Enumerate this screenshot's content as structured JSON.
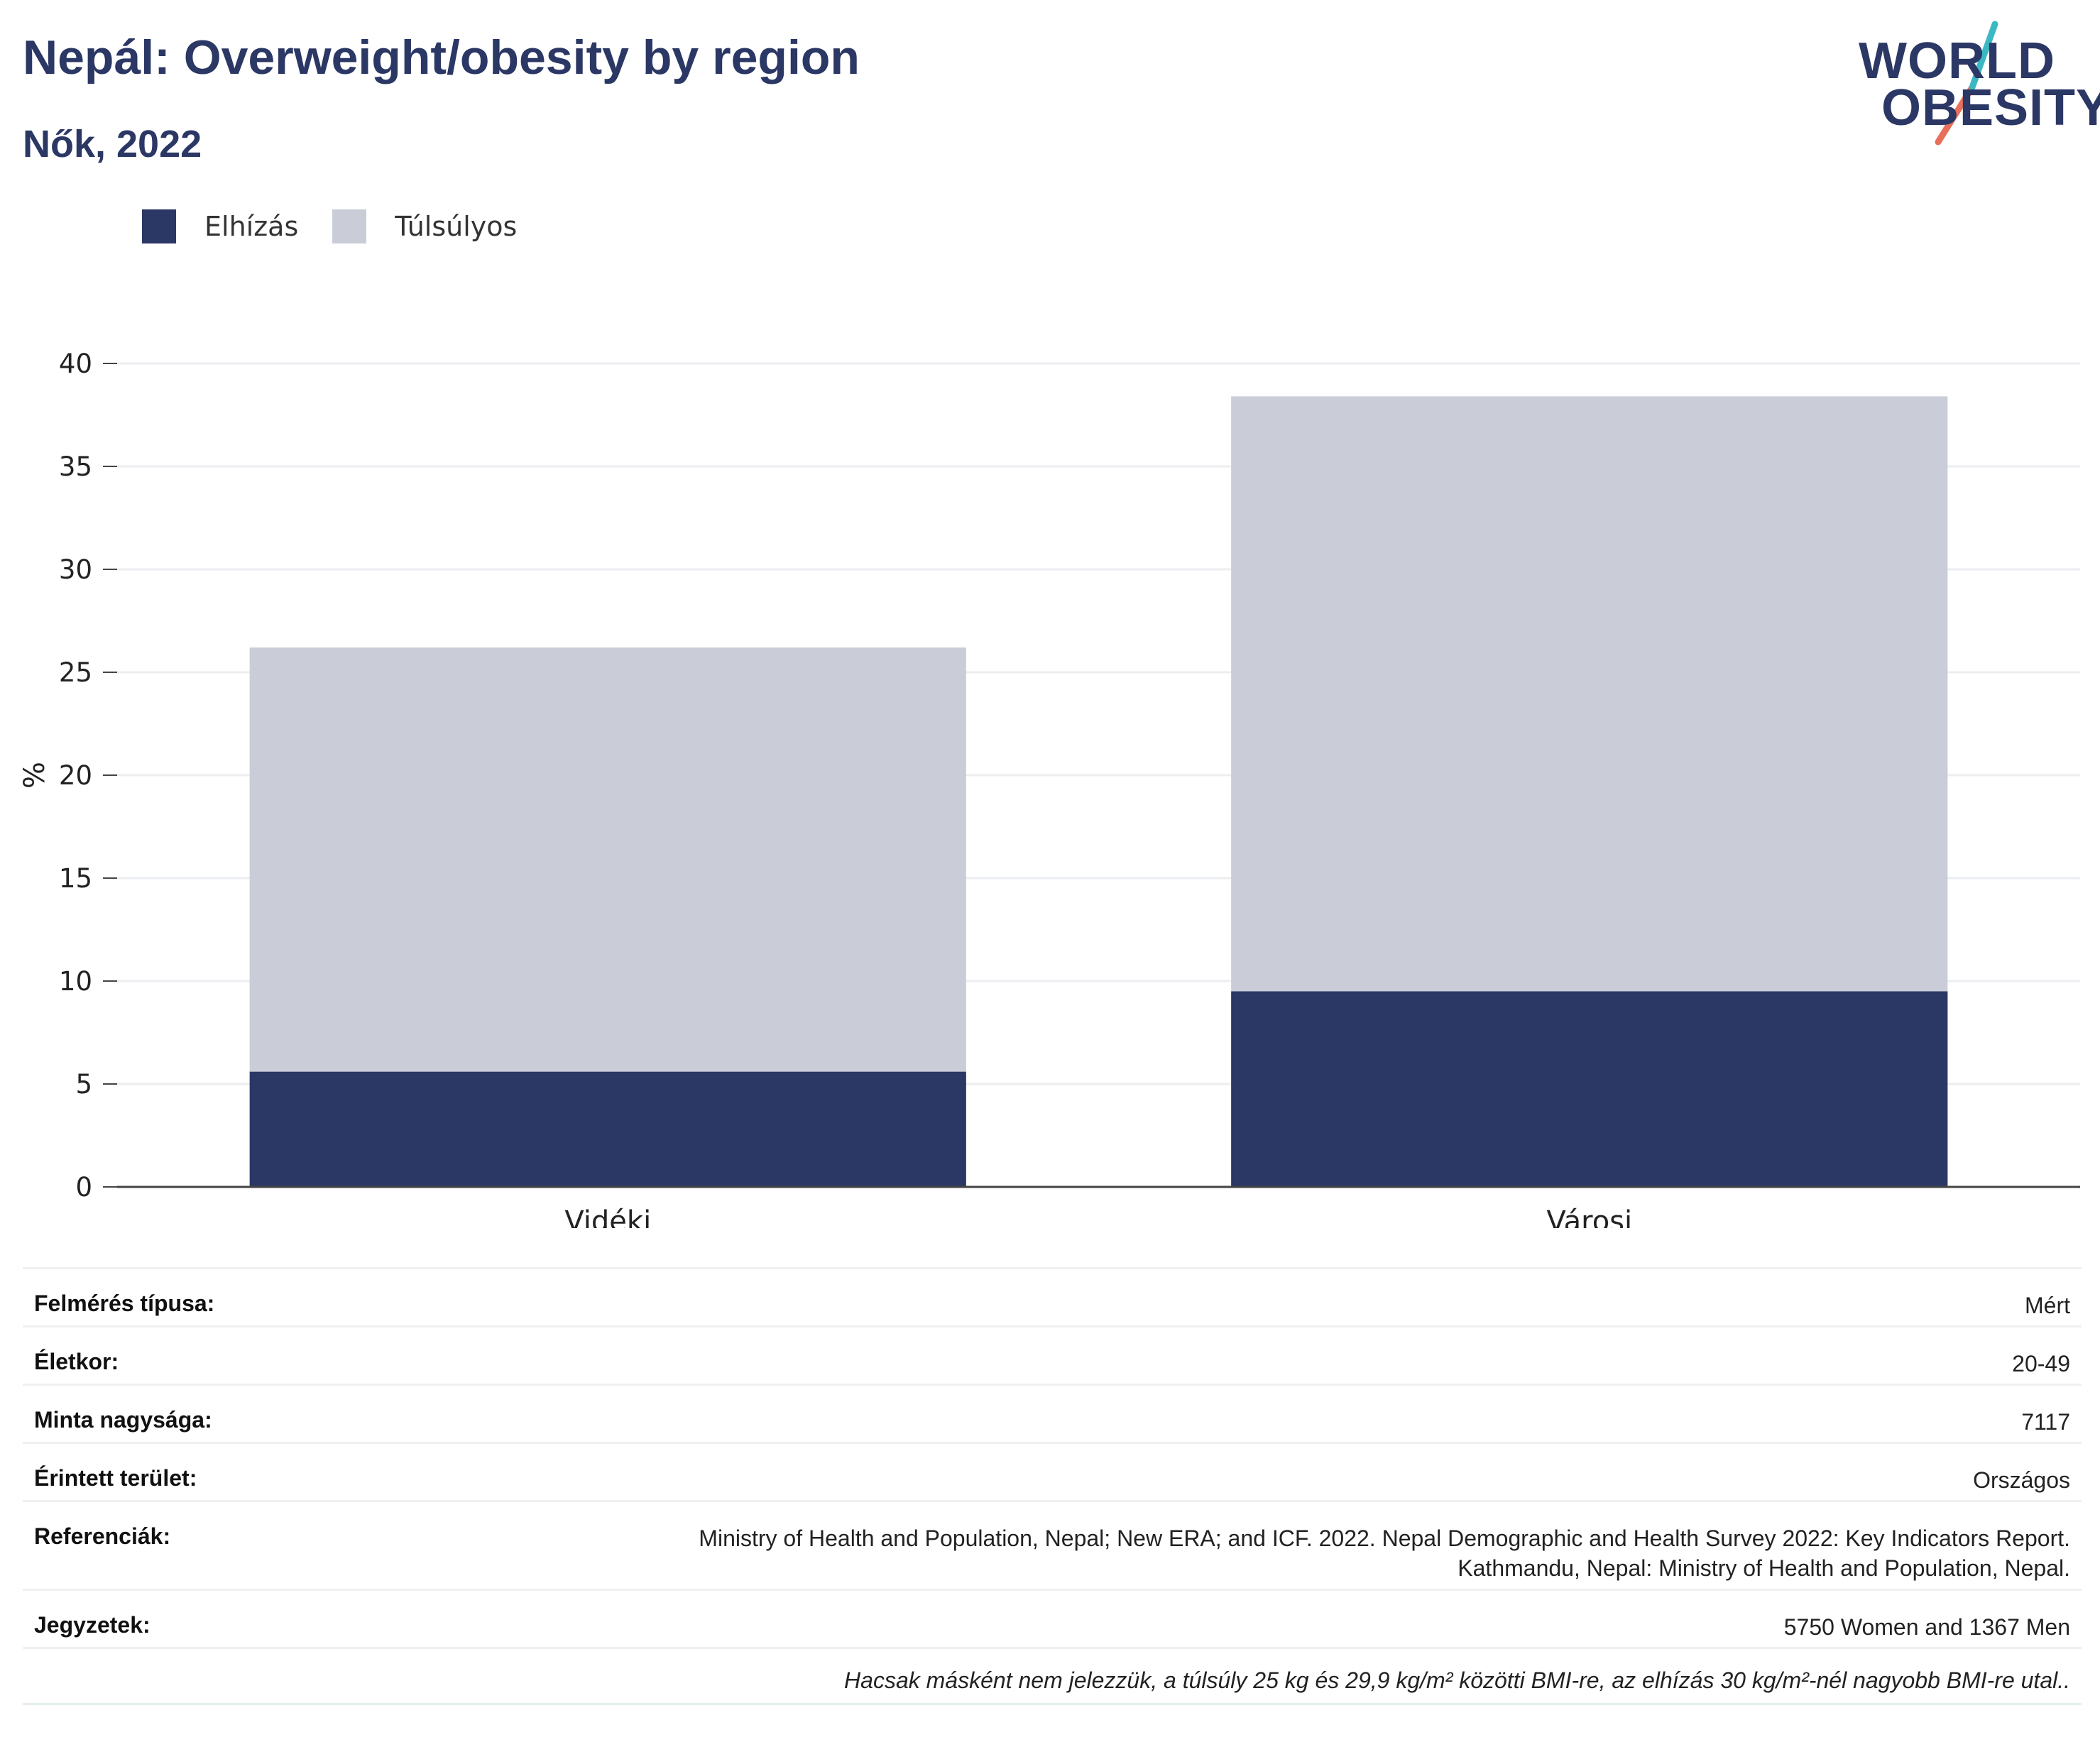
{
  "header": {
    "title": "Nepál: Overweight/obesity by region",
    "subtitle": "Nők, 2022"
  },
  "logo": {
    "line1": "WORLD",
    "line2": "OBESITY",
    "colors": {
      "text": "#2b3764",
      "slash_top": "#3bb8c4",
      "slash_bottom": "#e8705a"
    }
  },
  "legend": [
    {
      "label": "Elhízás",
      "color": "#2b3764"
    },
    {
      "label": "Túlsúlyos",
      "color": "#cacdd8"
    }
  ],
  "chart_data": {
    "type": "bar",
    "stacked": true,
    "categories": [
      "Vidéki",
      "Városi"
    ],
    "series": [
      {
        "name": "Elhízás",
        "color": "#2b3764",
        "values": [
          5.6,
          9.5
        ]
      },
      {
        "name": "Túlsúlyos",
        "color": "#cacdd8",
        "values": [
          20.6,
          28.9
        ]
      }
    ],
    "ylabel": "%",
    "ylim": [
      0,
      40
    ],
    "yticks": [
      0,
      5,
      10,
      15,
      20,
      25,
      30,
      35,
      40
    ],
    "grid": true,
    "legend_position": "top-left"
  },
  "info": {
    "survey_type": {
      "label": "Felmérés típusa:",
      "value": "Mért"
    },
    "age": {
      "label": "Életkor:",
      "value": "20-49"
    },
    "sample_size": {
      "label": "Minta nagysága:",
      "value": "7117"
    },
    "area": {
      "label": "Érintett terület:",
      "value": "Országos"
    },
    "references": {
      "label": "Referenciák:",
      "value_line1": "Ministry of Health and Population, Nepal; New ERA; and ICF. 2022. Nepal Demographic and Health Survey 2022: Key Indicators Report.",
      "value_line2": "Kathmandu, Nepal: Ministry of Health and Population, Nepal."
    },
    "notes": {
      "label": "Jegyzetek:",
      "value": "5750 Women and 1367 Men"
    },
    "footnote": "Hacsak másként nem jelezzük, a túlsúly 25 kg és 29,9 kg/m² közötti BMI-re, az elhízás 30 kg/m²-nél nagyobb BMI-re utal.."
  }
}
